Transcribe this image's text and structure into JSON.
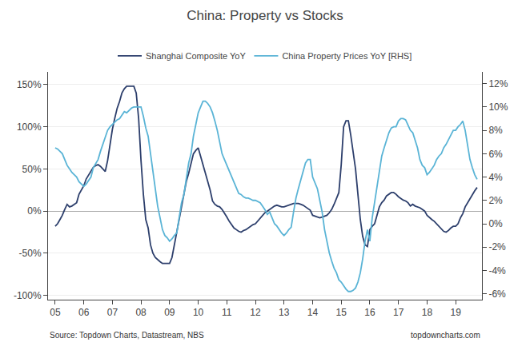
{
  "chart_data": {
    "type": "line",
    "title": "China: Property vs Stocks",
    "annotations": [
      "Source: Topdown Charts, Datastream, NBS",
      "topdowncharts.com"
    ],
    "x": [
      2005.0,
      2005.083,
      2005.167,
      2005.25,
      2005.333,
      2005.417,
      2005.5,
      2005.583,
      2005.667,
      2005.75,
      2005.833,
      2005.917,
      2006.0,
      2006.083,
      2006.167,
      2006.25,
      2006.333,
      2006.417,
      2006.5,
      2006.583,
      2006.667,
      2006.75,
      2006.833,
      2006.917,
      2007.0,
      2007.083,
      2007.167,
      2007.25,
      2007.333,
      2007.417,
      2007.5,
      2007.583,
      2007.667,
      2007.75,
      2007.833,
      2007.917,
      2008.0,
      2008.083,
      2008.167,
      2008.25,
      2008.333,
      2008.417,
      2008.5,
      2008.583,
      2008.667,
      2008.75,
      2008.833,
      2008.917,
      2009.0,
      2009.083,
      2009.167,
      2009.25,
      2009.333,
      2009.417,
      2009.5,
      2009.583,
      2009.667,
      2009.75,
      2009.833,
      2009.917,
      2010.0,
      2010.083,
      2010.167,
      2010.25,
      2010.333,
      2010.417,
      2010.5,
      2010.583,
      2010.667,
      2010.75,
      2010.833,
      2010.917,
      2011.0,
      2011.083,
      2011.167,
      2011.25,
      2011.333,
      2011.417,
      2011.5,
      2011.583,
      2011.667,
      2011.75,
      2011.833,
      2011.917,
      2012.0,
      2012.083,
      2012.167,
      2012.25,
      2012.333,
      2012.417,
      2012.5,
      2012.583,
      2012.667,
      2012.75,
      2012.833,
      2012.917,
      2013.0,
      2013.083,
      2013.167,
      2013.25,
      2013.333,
      2013.417,
      2013.5,
      2013.583,
      2013.667,
      2013.75,
      2013.833,
      2013.917,
      2014.0,
      2014.083,
      2014.167,
      2014.25,
      2014.333,
      2014.417,
      2014.5,
      2014.583,
      2014.667,
      2014.75,
      2014.833,
      2014.917,
      2015.0,
      2015.083,
      2015.167,
      2015.25,
      2015.333,
      2015.417,
      2015.5,
      2015.583,
      2015.667,
      2015.75,
      2015.833,
      2015.917,
      2016.0,
      2016.083,
      2016.167,
      2016.25,
      2016.333,
      2016.417,
      2016.5,
      2016.583,
      2016.667,
      2016.75,
      2016.833,
      2016.917,
      2017.0,
      2017.083,
      2017.167,
      2017.25,
      2017.333,
      2017.417,
      2017.5,
      2017.583,
      2017.667,
      2017.75,
      2017.833,
      2017.917,
      2018.0,
      2018.083,
      2018.167,
      2018.25,
      2018.333,
      2018.417,
      2018.5,
      2018.583,
      2018.667,
      2018.75,
      2018.833,
      2018.917,
      2019.0,
      2019.083,
      2019.167,
      2019.25,
      2019.333,
      2019.417,
      2019.5,
      2019.583,
      2019.667,
      2019.75
    ],
    "series": [
      {
        "name": "Shanghai Composite YoY",
        "color": "#2d3f6c",
        "values": [
          -0.18,
          -0.15,
          -0.1,
          -0.05,
          0.02,
          0.08,
          0.05,
          0.06,
          0.08,
          0.1,
          0.2,
          0.25,
          0.3,
          0.38,
          0.43,
          0.48,
          0.52,
          0.54,
          0.55,
          0.53,
          0.5,
          0.47,
          0.6,
          0.8,
          0.97,
          1.1,
          1.22,
          1.3,
          1.4,
          1.45,
          1.48,
          1.48,
          1.48,
          1.48,
          1.4,
          1.1,
          0.6,
          0.2,
          -0.1,
          -0.2,
          -0.4,
          -0.5,
          -0.55,
          -0.58,
          -0.6,
          -0.62,
          -0.62,
          -0.62,
          -0.62,
          -0.55,
          -0.4,
          -0.25,
          -0.1,
          0.08,
          0.22,
          0.35,
          0.45,
          0.58,
          0.68,
          0.72,
          0.75,
          0.65,
          0.55,
          0.45,
          0.35,
          0.25,
          0.12,
          0.08,
          0.06,
          0.05,
          0.02,
          -0.02,
          -0.07,
          -0.12,
          -0.16,
          -0.2,
          -0.22,
          -0.24,
          -0.25,
          -0.23,
          -0.22,
          -0.2,
          -0.18,
          -0.16,
          -0.15,
          -0.12,
          -0.08,
          -0.05,
          -0.02,
          0.0,
          0.02,
          0.04,
          0.06,
          0.07,
          0.06,
          0.05,
          0.05,
          0.06,
          0.07,
          0.08,
          0.09,
          0.09,
          0.09,
          0.08,
          0.07,
          0.05,
          0.03,
          0.01,
          -0.05,
          -0.06,
          -0.07,
          -0.08,
          -0.07,
          -0.06,
          -0.05,
          -0.02,
          0.02,
          0.08,
          0.15,
          0.22,
          0.55,
          1.0,
          1.07,
          1.07,
          0.9,
          0.7,
          0.5,
          0.2,
          -0.1,
          -0.3,
          -0.4,
          -0.42,
          -0.22,
          -0.18,
          -0.15,
          -0.05,
          0.05,
          0.1,
          0.13,
          0.18,
          0.2,
          0.22,
          0.22,
          0.2,
          0.17,
          0.15,
          0.13,
          0.12,
          0.1,
          0.06,
          0.08,
          0.06,
          0.05,
          0.04,
          0.02,
          0.0,
          -0.05,
          -0.08,
          -0.1,
          -0.12,
          -0.15,
          -0.18,
          -0.22,
          -0.24,
          -0.25,
          -0.23,
          -0.2,
          -0.18,
          -0.18,
          -0.15,
          -0.08,
          -0.03,
          0.05,
          0.1,
          0.15,
          0.2,
          0.24,
          0.28
        ]
      },
      {
        "name": "China Property Prices YoY [RHS]",
        "color": "#5ab4d6",
        "axis": "y2",
        "values": [
          0.065,
          0.064,
          0.062,
          0.06,
          0.055,
          0.05,
          0.047,
          0.044,
          0.042,
          0.04,
          0.036,
          0.034,
          0.032,
          0.034,
          0.037,
          0.04,
          0.048,
          0.052,
          0.055,
          0.062,
          0.068,
          0.075,
          0.08,
          0.083,
          0.085,
          0.087,
          0.089,
          0.09,
          0.093,
          0.096,
          0.095,
          0.097,
          0.099,
          0.1,
          0.1,
          0.1,
          0.1,
          0.092,
          0.082,
          0.075,
          0.06,
          0.045,
          0.03,
          0.015,
          0.005,
          -0.005,
          -0.01,
          -0.012,
          -0.015,
          -0.013,
          -0.01,
          -0.008,
          0.005,
          0.018,
          0.025,
          0.04,
          0.052,
          0.06,
          0.075,
          0.085,
          0.095,
          0.1,
          0.105,
          0.105,
          0.103,
          0.1,
          0.095,
          0.088,
          0.08,
          0.07,
          0.06,
          0.055,
          0.05,
          0.045,
          0.04,
          0.035,
          0.03,
          0.026,
          0.025,
          0.023,
          0.022,
          0.022,
          0.021,
          0.02,
          0.02,
          0.019,
          0.018,
          0.015,
          0.012,
          0.008,
          0.01,
          0.005,
          0.0,
          -0.002,
          -0.005,
          -0.008,
          -0.01,
          -0.008,
          -0.005,
          -0.003,
          0.01,
          0.022,
          0.03,
          0.038,
          0.045,
          0.052,
          0.055,
          0.055,
          0.04,
          0.035,
          0.03,
          0.02,
          0.01,
          -0.005,
          -0.015,
          -0.025,
          -0.032,
          -0.038,
          -0.042,
          -0.048,
          -0.05,
          -0.053,
          -0.056,
          -0.058,
          -0.058,
          -0.057,
          -0.055,
          -0.05,
          -0.042,
          -0.03,
          -0.015,
          -0.005,
          -0.015,
          0.005,
          0.018,
          0.03,
          0.045,
          0.058,
          0.065,
          0.072,
          0.078,
          0.082,
          0.083,
          0.083,
          0.088,
          0.09,
          0.09,
          0.089,
          0.085,
          0.08,
          0.078,
          0.072,
          0.065,
          0.055,
          0.05,
          0.048,
          0.042,
          0.044,
          0.047,
          0.05,
          0.055,
          0.058,
          0.06,
          0.065,
          0.068,
          0.072,
          0.076,
          0.08,
          0.08,
          0.083,
          0.085,
          0.088,
          0.08,
          0.068,
          0.055,
          0.048,
          0.042,
          0.038
        ]
      }
    ],
    "xlim": [
      2004.75,
      2019.92
    ],
    "xticks": [
      {
        "value": 2005,
        "label": "05"
      },
      {
        "value": 2006,
        "label": "06"
      },
      {
        "value": 2007,
        "label": "07"
      },
      {
        "value": 2008,
        "label": "08"
      },
      {
        "value": 2009,
        "label": "09"
      },
      {
        "value": 2010,
        "label": "10"
      },
      {
        "value": 2011,
        "label": "11"
      },
      {
        "value": 2012,
        "label": "12"
      },
      {
        "value": 2013,
        "label": "13"
      },
      {
        "value": 2014,
        "label": "14"
      },
      {
        "value": 2015,
        "label": "15"
      },
      {
        "value": 2016,
        "label": "16"
      },
      {
        "value": 2017,
        "label": "17"
      },
      {
        "value": 2018,
        "label": "18"
      },
      {
        "value": 2019,
        "label": "19"
      }
    ],
    "ylim": [
      -1.05,
      1.65
    ],
    "yticks": [
      {
        "value": -1.0,
        "label": "-100%"
      },
      {
        "value": -0.5,
        "label": "-50%"
      },
      {
        "value": 0.0,
        "label": "0%"
      },
      {
        "value": 0.5,
        "label": "50%"
      },
      {
        "value": 1.0,
        "label": "100%"
      },
      {
        "value": 1.5,
        "label": "150%"
      }
    ],
    "y2lim": [
      -0.065,
      0.13
    ],
    "y2ticks": [
      {
        "value": -0.06,
        "label": "-6%"
      },
      {
        "value": -0.04,
        "label": "-4%"
      },
      {
        "value": -0.02,
        "label": "-2%"
      },
      {
        "value": 0.0,
        "label": "0%"
      },
      {
        "value": 0.02,
        "label": "2%"
      },
      {
        "value": 0.04,
        "label": "4%"
      },
      {
        "value": 0.06,
        "label": "6%"
      },
      {
        "value": 0.08,
        "label": "8%"
      },
      {
        "value": 0.1,
        "label": "10%"
      },
      {
        "value": 0.12,
        "label": "12%"
      }
    ],
    "grid": true,
    "legend": "top"
  }
}
